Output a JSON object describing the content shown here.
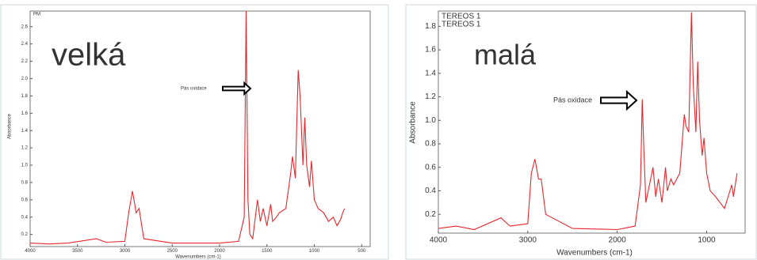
{
  "chart_data": [
    {
      "type": "line",
      "x": [
        4000,
        3800,
        3600,
        3300,
        3200,
        3000,
        2960,
        2920,
        2880,
        2850,
        2800,
        2500,
        2000,
        1800,
        1740,
        1720,
        1700,
        1680,
        1650,
        1600,
        1570,
        1540,
        1500,
        1460,
        1440,
        1400,
        1370,
        1300,
        1250,
        1230,
        1200,
        1170,
        1150,
        1120,
        1100,
        1080,
        1050,
        1030,
        1000,
        960,
        900,
        850,
        800,
        760,
        720,
        700,
        680
      ],
      "series": [
        {
          "color": "#e8262b",
          "values": [
            0.1,
            0.09,
            0.1,
            0.15,
            0.11,
            0.12,
            0.45,
            0.7,
            0.45,
            0.5,
            0.15,
            0.1,
            0.1,
            0.12,
            0.4,
            2.78,
            0.6,
            0.2,
            0.15,
            0.6,
            0.35,
            0.5,
            0.3,
            0.55,
            0.35,
            0.4,
            0.45,
            0.5,
            0.9,
            1.1,
            0.85,
            2.1,
            1.8,
            1.0,
            1.55,
            1.0,
            0.75,
            1.05,
            0.6,
            0.5,
            0.45,
            0.35,
            0.4,
            0.3,
            0.38,
            0.45,
            0.5
          ]
        }
      ],
      "legend": [
        {
          "label": "PM",
          "color": "#e8262b"
        }
      ],
      "annotations": [
        {
          "text": "velká",
          "color": "#ee1c24"
        },
        {
          "text": "Pás oxidace",
          "color": "#333"
        }
      ],
      "y_label": "Absorbance",
      "x_label": "Wavenumbers (cm-1)",
      "xlim": [
        4000,
        410
      ],
      "xticks": [
        4000,
        3500,
        3000,
        2500,
        2000,
        1500,
        1000,
        500
      ],
      "ylim": [
        0.06,
        2.78
      ],
      "yticks": [
        0.2,
        0.4,
        0.6,
        0.8,
        {
          "value": 1,
          "label": "1.0"
        },
        1.2,
        1.4,
        1.6,
        1.8,
        {
          "value": 2,
          "label": "2.0"
        },
        2.2,
        2.4,
        2.6
      ]
    },
    {
      "type": "line",
      "x": [
        4000,
        3800,
        3600,
        3300,
        3200,
        3000,
        2960,
        2920,
        2880,
        2850,
        2800,
        2500,
        2000,
        1800,
        1740,
        1720,
        1700,
        1680,
        1600,
        1570,
        1540,
        1500,
        1460,
        1440,
        1400,
        1370,
        1300,
        1250,
        1230,
        1200,
        1170,
        1150,
        1120,
        1100,
        1080,
        1050,
        1030,
        1000,
        960,
        900,
        850,
        800,
        760,
        720,
        700,
        660
      ],
      "series": [
        {
          "color": "#e8262b",
          "values": [
            0.08,
            0.1,
            0.07,
            0.17,
            0.1,
            0.12,
            0.55,
            0.67,
            0.5,
            0.5,
            0.2,
            0.08,
            0.07,
            0.1,
            0.45,
            1.18,
            0.7,
            0.3,
            0.6,
            0.35,
            0.5,
            0.3,
            0.6,
            0.4,
            0.5,
            0.45,
            0.55,
            1.05,
            0.95,
            0.9,
            1.92,
            1.3,
            0.9,
            1.5,
            1.0,
            0.7,
            0.85,
            0.55,
            0.4,
            0.35,
            0.3,
            0.25,
            0.35,
            0.45,
            0.35,
            0.55
          ]
        }
      ],
      "legend": [
        {
          "label": "TEREOS 1",
          "color": "#2b2bd8"
        },
        {
          "label": "TEREOS 1",
          "color": "#e8262b"
        }
      ],
      "annotations": [
        {
          "text": "malá",
          "color": "#1a9a2a"
        },
        {
          "text": "Pás oxidace",
          "color": "#333"
        }
      ],
      "y_label": "Absorbance",
      "x_label": "Wavenumbers (cm-1)",
      "xlim": [
        4000,
        570
      ],
      "xticks": [
        4000,
        3000,
        2000,
        1000
      ],
      "ylim": [
        0.04,
        1.93
      ],
      "yticks": [
        0.2,
        0.4,
        0.6,
        0.8,
        {
          "value": 1,
          "label": "1.0"
        },
        1.2,
        1.4,
        1.6,
        1.8
      ]
    }
  ]
}
